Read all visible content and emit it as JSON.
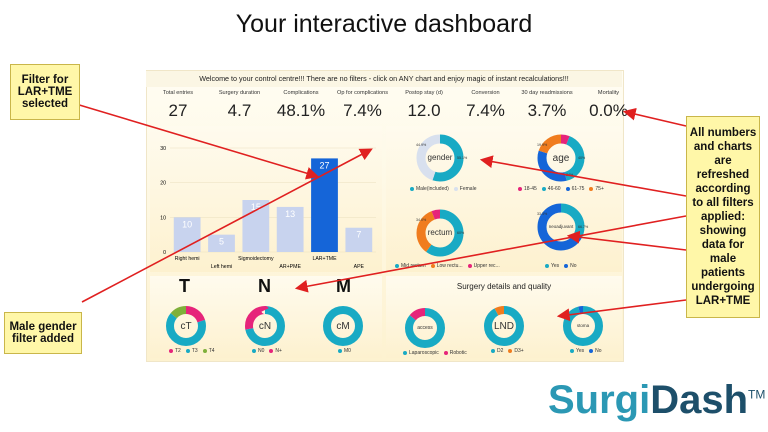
{
  "title": "Your interactive dashboard",
  "welcome": "Welcome to your control centre!!! There are no filters - click on ANY chart and enjoy magic of instant recalculations!!!",
  "kpis": [
    {
      "label": "Total entries",
      "value": "27"
    },
    {
      "label": "Surgery duration",
      "value": "4.7"
    },
    {
      "label": "Complications",
      "value": "48.1%"
    },
    {
      "label": "Op for complications",
      "value": "7.4%"
    },
    {
      "label": "Postop stay (d)",
      "value": "12.0"
    },
    {
      "label": "Conversion",
      "value": "7.4%"
    },
    {
      "label": "30 day readmissions",
      "value": "3.7%"
    },
    {
      "label": "Mortality",
      "value": "0.0%"
    }
  ],
  "callouts": {
    "filter": "Filter for LAR+TME selected",
    "gender": "Male gender filter added",
    "refreshed": "All numbers and charts are refreshed according to all filters applied: showing data for male patients undergoing LAR+TME"
  },
  "chart_data": {
    "type": "bar",
    "categories": [
      "Right hemi",
      "Left hemi",
      "Sigmoidectomy",
      "AR+PME",
      "LAR+TME",
      "APE"
    ],
    "values": [
      10,
      5,
      15,
      13,
      27,
      7
    ],
    "ylim": [
      0,
      30
    ],
    "yticks": [
      "0",
      "10",
      "20",
      "30"
    ],
    "highlight": "LAR+TME",
    "colors": {
      "normal": "#c8d3ee",
      "highlight": "#1565d8"
    }
  },
  "donuts": {
    "gender": {
      "center": "gender",
      "segments": [
        {
          "name": "Male(included)",
          "value": 55.1,
          "color": "#18aac4"
        },
        {
          "name": "Female",
          "value": 44.9,
          "color": "#d8e0ee"
        }
      ],
      "labels": [
        "44.9%",
        "55.1%"
      ]
    },
    "age": {
      "center": "age",
      "segments": [
        {
          "name": "18-45",
          "value": 6,
          "color": "#e6247a"
        },
        {
          "name": "46-60",
          "value": 40,
          "color": "#18aac4"
        },
        {
          "name": "61-75",
          "value": 34,
          "color": "#1565d8"
        },
        {
          "name": "75+",
          "value": 20,
          "color": "#f07c1e"
        }
      ],
      "labels": [
        "19.9%",
        "40%",
        "34%"
      ]
    },
    "rectum": {
      "center": "rectum",
      "segments": [
        {
          "name": "Mid rectum",
          "value": 60,
          "color": "#18aac4"
        },
        {
          "name": "Low rectu...",
          "value": 34,
          "color": "#f07c1e"
        },
        {
          "name": "Upper rec...",
          "value": 6,
          "color": "#e6247a"
        }
      ],
      "labels": [
        "34.0%",
        "60%"
      ]
    },
    "neoadjuvant": {
      "center": "neoadjuvant",
      "segments": [
        {
          "name": "Yes",
          "value": 33,
          "color": "#18aac4"
        },
        {
          "name": "No",
          "value": 67,
          "color": "#1565d8"
        }
      ],
      "labels": [
        "33.3%",
        "66.7%"
      ]
    },
    "cT": {
      "center": "cT",
      "segments": [
        {
          "name": "T2",
          "value": 20,
          "color": "#e6247a"
        },
        {
          "name": "T3",
          "value": 66,
          "color": "#18aac4"
        },
        {
          "name": "T4",
          "value": 14,
          "color": "#7fb03a"
        }
      ]
    },
    "cN": {
      "center": "cN",
      "segments": [
        {
          "name": "N0",
          "value": 72,
          "color": "#18aac4"
        },
        {
          "name": "N+",
          "value": 28,
          "color": "#e6247a"
        }
      ]
    },
    "cM": {
      "center": "cM",
      "segments": [
        {
          "name": "M0",
          "value": 100,
          "color": "#18aac4"
        }
      ]
    },
    "access": {
      "center": "access",
      "segments": [
        {
          "name": "Laparoscopic",
          "value": 86,
          "color": "#18aac4"
        },
        {
          "name": "Robotic",
          "value": 14,
          "color": "#e6247a"
        }
      ]
    },
    "lnd": {
      "center": "LND",
      "segments": [
        {
          "name": "D2",
          "value": 92,
          "color": "#18aac4"
        },
        {
          "name": "D3+",
          "value": 8,
          "color": "#f07c1e"
        }
      ]
    },
    "stoma": {
      "center": "stoma",
      "segments": [
        {
          "name": "Yes",
          "value": 96,
          "color": "#18aac4"
        },
        {
          "name": "No",
          "value": 4,
          "color": "#1565d8"
        }
      ]
    }
  },
  "tnm": {
    "T": "T",
    "N": "N",
    "M": "M"
  },
  "surgery_title": "Surgery details and quality",
  "brand": {
    "part1": "Surgi",
    "part2": "Dash",
    "tm": "TM"
  }
}
